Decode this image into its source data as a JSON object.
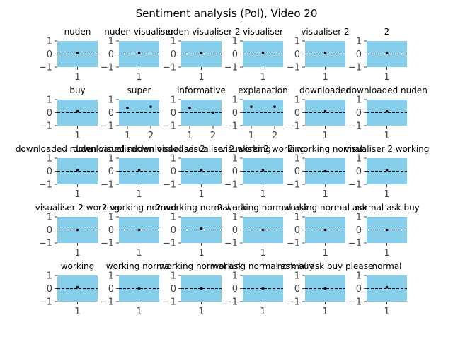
{
  "chart_data": {
    "type": "scatter",
    "title": "Sentiment analysis (Pol), Video 20",
    "layout_grid": {
      "rows": 5,
      "cols": 6
    },
    "ylim": [
      -1.0,
      1.0
    ],
    "yticks": [
      1,
      0,
      -1
    ],
    "ytick_labels": [
      "1",
      "0",
      "−1"
    ],
    "reference_line_y": 0,
    "colors": {
      "panel_background": "#87ceeb",
      "points": "#000000",
      "reference_line": "#000000",
      "text": "#000000",
      "tick_text": "#444444"
    },
    "panels": [
      {
        "title": "nuden",
        "xticks": [
          "1"
        ],
        "points": [
          {
            "x": 1,
            "y": 0.1
          }
        ]
      },
      {
        "title": "nuden visualiser",
        "xticks": [
          "1"
        ],
        "points": [
          {
            "x": 1,
            "y": 0.1
          }
        ]
      },
      {
        "title": "nuden visualiser 2",
        "xticks": [
          "1"
        ],
        "points": [
          {
            "x": 1,
            "y": 0.1
          }
        ]
      },
      {
        "title": "visualiser",
        "xticks": [
          "1"
        ],
        "points": [
          {
            "x": 1,
            "y": 0.1
          }
        ]
      },
      {
        "title": "visualiser 2",
        "xticks": [
          "1"
        ],
        "points": [
          {
            "x": 1,
            "y": 0.1
          }
        ]
      },
      {
        "title": "2",
        "xticks": [
          "1"
        ],
        "points": [
          {
            "x": 1,
            "y": 0.1
          }
        ]
      },
      {
        "title": "buy",
        "xticks": [
          "1"
        ],
        "points": [
          {
            "x": 1,
            "y": 0.1
          }
        ]
      },
      {
        "title": "super",
        "xticks": [
          "1",
          "2"
        ],
        "points": [
          {
            "x": 1,
            "y": 0.35
          },
          {
            "x": 2,
            "y": 0.45
          }
        ]
      },
      {
        "title": "informative",
        "xticks": [
          "1",
          "2"
        ],
        "points": [
          {
            "x": 1,
            "y": 0.35
          },
          {
            "x": 2,
            "y": 0.0
          }
        ]
      },
      {
        "title": "explanation",
        "xticks": [
          "1",
          "2"
        ],
        "points": [
          {
            "x": 1,
            "y": 0.45
          },
          {
            "x": 2,
            "y": 0.45
          }
        ]
      },
      {
        "title": "downloaded",
        "xticks": [
          "1"
        ],
        "points": [
          {
            "x": 1,
            "y": 0.1
          }
        ]
      },
      {
        "title": "downloaded nuden",
        "xticks": [
          "1"
        ],
        "points": [
          {
            "x": 1,
            "y": 0.1
          }
        ]
      },
      {
        "title": "downloaded nuden visualiser",
        "xticks": [
          "1"
        ],
        "points": [
          {
            "x": 1,
            "y": 0.1
          }
        ]
      },
      {
        "title": "downloaded nuden visualiser 2",
        "xticks": [
          "1"
        ],
        "points": [
          {
            "x": 1,
            "y": 0.1
          }
        ]
      },
      {
        "title": "downloaded visualiser 2 working",
        "xticks": [
          "1"
        ],
        "points": [
          {
            "x": 1,
            "y": 0.1
          }
        ]
      },
      {
        "title": "visualiser 2 working",
        "xticks": [
          "1"
        ],
        "points": [
          {
            "x": 1,
            "y": 0.1
          }
        ]
      },
      {
        "title": "2 working normal",
        "xticks": [
          "1"
        ],
        "points": [
          {
            "x": 1,
            "y": 0.0
          }
        ]
      },
      {
        "title": "visualiser 2 working",
        "xticks": [
          "1"
        ],
        "points": [
          {
            "x": 1,
            "y": 0.1
          }
        ]
      },
      {
        "title": "visualiser 2 working",
        "xticks": [
          "1"
        ],
        "points": [
          {
            "x": 1,
            "y": 0.0
          }
        ]
      },
      {
        "title": "2 working normal",
        "xticks": [
          "1"
        ],
        "points": [
          {
            "x": 1,
            "y": 0.0
          }
        ]
      },
      {
        "title": "2 working normal ask",
        "xticks": [
          "1"
        ],
        "points": [
          {
            "x": 1,
            "y": 0.1
          }
        ]
      },
      {
        "title": "2 working normal ask",
        "xticks": [
          "1"
        ],
        "points": [
          {
            "x": 1,
            "y": 0.0
          }
        ]
      },
      {
        "title": "working normal ask",
        "xticks": [
          "1"
        ],
        "points": [
          {
            "x": 1,
            "y": 0.0
          }
        ]
      },
      {
        "title": "normal ask buy",
        "xticks": [
          "1"
        ],
        "points": [
          {
            "x": 1,
            "y": 0.0
          }
        ]
      },
      {
        "title": "working",
        "xticks": [
          "1"
        ],
        "points": [
          {
            "x": 1,
            "y": 0.1
          }
        ]
      },
      {
        "title": "working normal",
        "xticks": [
          "1"
        ],
        "points": [
          {
            "x": 1,
            "y": 0.0
          }
        ]
      },
      {
        "title": "working normal ask",
        "xticks": [
          "1"
        ],
        "points": [
          {
            "x": 1,
            "y": 0.0
          }
        ]
      },
      {
        "title": "working normal ask buy",
        "xticks": [
          "1"
        ],
        "points": [
          {
            "x": 1,
            "y": 0.0
          }
        ]
      },
      {
        "title": "normal ask buy please",
        "xticks": [
          "1"
        ],
        "points": [
          {
            "x": 1,
            "y": 0.0
          }
        ]
      },
      {
        "title": "normal",
        "xticks": [
          "1"
        ],
        "points": [
          {
            "x": 1,
            "y": 0.1
          }
        ]
      }
    ]
  }
}
